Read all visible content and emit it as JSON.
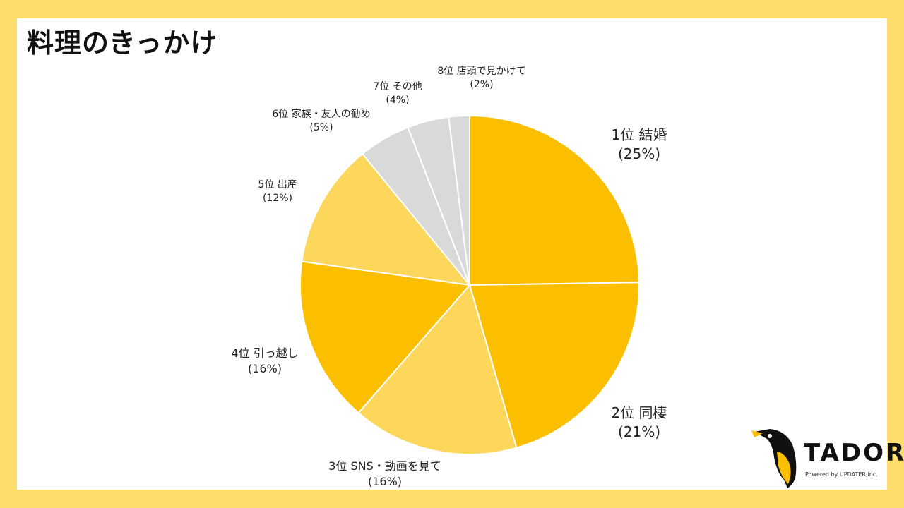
{
  "title": "料理のきっかけ",
  "chart_data": {
    "type": "pie",
    "slices": [
      {
        "rank": "1位",
        "name": "結婚",
        "value": 25,
        "pct_label": "(25%)",
        "color": "#FBBF00"
      },
      {
        "rank": "2位",
        "name": "同棲",
        "value": 21,
        "pct_label": "(21%)",
        "color": "#FBBF00"
      },
      {
        "rank": "3位",
        "name": "SNS・動画を見て",
        "value": 16,
        "pct_label": "(16%)",
        "color": "#FCD75C"
      },
      {
        "rank": "4位",
        "name": "引っ越し",
        "value": 16,
        "pct_label": "(16%)",
        "color": "#FBBF00"
      },
      {
        "rank": "5位",
        "name": "出産",
        "value": 12,
        "pct_label": "(12%)",
        "color": "#FCD75C"
      },
      {
        "rank": "6位",
        "name": "家族・友人の勧め",
        "value": 5,
        "pct_label": "(5%)",
        "color": "#D9D9D9"
      },
      {
        "rank": "7位",
        "name": "その他",
        "value": 4,
        "pct_label": "(4%)",
        "color": "#D9D9D9"
      },
      {
        "rank": "8位",
        "name": "店頭で見かけて",
        "value": 2,
        "pct_label": "(2%)",
        "color": "#D9D9D9"
      }
    ],
    "start": "12 o'clock",
    "direction": "clockwise"
  },
  "logo": {
    "brand": "TADORi",
    "sub": "Powered by UPDATER,inc."
  }
}
